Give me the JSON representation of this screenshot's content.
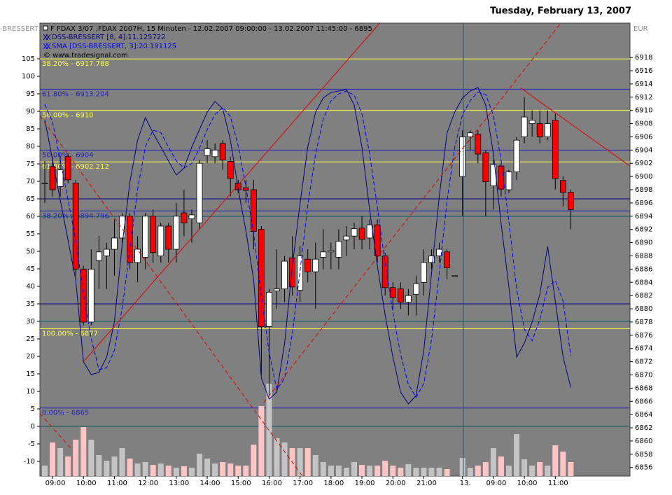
{
  "chart_data": {
    "type": "candlestick",
    "title": "Tuesday, February 13, 2007",
    "subtitle": "F FDAX 3/07 ,FDAX 2007H, 15 Minuten - 12.02.2007 09:00:00 - 13.02.2007 11:45:00 - 6895",
    "left_label": "-BRESSERT",
    "right_label": "EUR",
    "copyright": "© www.tradesignal.com",
    "categories": [
      null,
      "09:00",
      null,
      null,
      null,
      "10:00",
      null,
      null,
      null,
      "11:00",
      null,
      null,
      null,
      "12:00",
      null,
      null,
      null,
      "13:00",
      null,
      null,
      null,
      "14:00",
      null,
      null,
      null,
      "15:00",
      null,
      null,
      null,
      "16:00",
      null,
      null,
      null,
      "17:00",
      null,
      null,
      null,
      "18:00",
      null,
      null,
      null,
      "19:00",
      null,
      null,
      null,
      "20:00",
      null,
      null,
      null,
      "21:00",
      null,
      null,
      null,
      null,
      "13.",
      null,
      null,
      null,
      "09:00",
      null,
      null,
      null,
      "10:00",
      null,
      null,
      null,
      "11:00",
      null,
      null
    ],
    "ylim": [
      -14.2,
      115.2
    ],
    "yticks": [
      -10,
      -5,
      0,
      5,
      10,
      15,
      20,
      25,
      30,
      35,
      40,
      45,
      50,
      55,
      60,
      65,
      70,
      75,
      80,
      85,
      90,
      95,
      100,
      105
    ],
    "y2lim": [
      6854.7,
      6923.2
    ],
    "y2ticks": [
      6856,
      6858,
      6860,
      6862,
      6864,
      6866,
      6868,
      6870,
      6872,
      6874,
      6876,
      6878,
      6880,
      6882,
      6884,
      6886,
      6888,
      6890,
      6892,
      6894,
      6896,
      6898,
      6900,
      6902,
      6904,
      6906,
      6908,
      6910,
      6912,
      6914,
      6916,
      6918
    ],
    "candles": {
      "axis": "y2",
      "up_color": "#ffffff",
      "down_color": "#ff0000",
      "open": [
        6899,
        6901.5,
        6898.5,
        6903,
        6899,
        6886,
        6878,
        6887.3,
        6888,
        6889,
        6890.7,
        6894,
        6887,
        6887.8,
        6894,
        6888,
        6892.5,
        6889,
        6894.5,
        6893.6,
        6893,
        6903.2,
        6903,
        6905,
        6902.3,
        6899,
        6898.3,
        6898,
        6892,
        6877.3,
        6882.7,
        6883,
        6887.7,
        6882.8,
        6887.5,
        6885.6,
        6887.8,
        6888.6,
        6887.8,
        6890.4,
        6891,
        6892.2,
        6890.7,
        6892.7,
        6888,
        6883.2,
        6883,
        6881,
        6882.2,
        6884,
        6887,
        6888,
        6888.6,
        6885,
        6900,
        6906,
        6906.4,
        6903.6,
        6898.6,
        6901.6,
        6898,
        6900.7,
        6906,
        6908,
        6908,
        6906,
        6908.5,
        6899.4,
        6897.6
      ],
      "high": [
        6902.3,
        6903,
        6903,
        6903.5,
        6899.5,
        6886.5,
        6889,
        6891,
        6890,
        6893.5,
        6894.5,
        6894.5,
        6891,
        6894.5,
        6895,
        6893,
        6893,
        6896,
        6898,
        6895,
        6902.5,
        6905.5,
        6905,
        6905.5,
        6903,
        6899.5,
        6899.5,
        6899.5,
        6892.5,
        6883,
        6889,
        6888,
        6891,
        6889.5,
        6889,
        6890,
        6892,
        6890,
        6892,
        6892.5,
        6893,
        6894,
        6893.5,
        6893.5,
        6888.5,
        6884,
        6884,
        6883,
        6885,
        6889,
        6889,
        6890,
        6889,
        6885,
        6907,
        6907,
        6907,
        6904,
        6902.5,
        6902,
        6901,
        6906,
        6912,
        6910,
        6910,
        6910,
        6909.5,
        6900,
        6898
      ],
      "low": [
        6896,
        6897,
        6897,
        6899,
        6885,
        6877.5,
        6877.5,
        6883,
        6883,
        6885,
        6890,
        6886,
        6884,
        6886,
        6887,
        6887,
        6887,
        6887,
        6891,
        6890,
        6892,
        6902,
        6902,
        6901,
        6897,
        6897.5,
        6896,
        6889,
        6870,
        6867,
        6880,
        6881,
        6882,
        6881,
        6884,
        6880,
        6886,
        6886,
        6886,
        6888,
        6889,
        6889,
        6889,
        6887,
        6882,
        6880,
        6880,
        6879,
        6879,
        6882,
        6886,
        6887,
        6884.5,
        6885,
        6894,
        6904,
        6902,
        6894,
        6895,
        6897,
        6897.5,
        6899.5,
        6905,
        6906,
        6905,
        6905.5,
        6898,
        6895.5,
        6892
      ],
      "close": [
        6899,
        6898,
        6901,
        6899.5,
        6886,
        6878,
        6886,
        6888.6,
        6889,
        6890.7,
        6894,
        6887,
        6889,
        6894,
        6888.5,
        6892.5,
        6889,
        6894,
        6893,
        6894.2,
        6902,
        6904.2,
        6904,
        6902.5,
        6899.7,
        6898,
        6897.9,
        6891.7,
        6877.3,
        6882.5,
        6883,
        6887.2,
        6883.3,
        6888,
        6885.6,
        6887.5,
        6888.6,
        6888.8,
        6890.2,
        6891,
        6892.1,
        6890.5,
        6892.7,
        6888,
        6883.2,
        6881.7,
        6881,
        6882,
        6883.8,
        6887,
        6888,
        6889,
        6886.2,
        6885,
        6906,
        6906.6,
        6903.4,
        6899.2,
        6901.8,
        6898.1,
        6900.7,
        6905.5,
        6909,
        6908.5,
        6906,
        6908,
        6899.7,
        6897.6,
        6895
      ]
    },
    "volume": {
      "up_color": "#c4c4c4",
      "down_color": "#ffc4c4",
      "values": [
        -11.2,
        -4.6,
        -6.2,
        -8.6,
        -3.8,
        -0.2,
        -3.8,
        -8.2,
        -9.8,
        -8.6,
        -6.2,
        -9.2,
        -10.6,
        -10.2,
        -11,
        -10.6,
        -11.2,
        -11.8,
        -11.4,
        -11.8,
        -7.8,
        -9.2,
        -10.6,
        -10.2,
        -10.6,
        -11.2,
        -11.2,
        -5.2,
        5.8,
        12.2,
        -3.4,
        -4.6,
        -6.2,
        -6.2,
        -6.2,
        -8.2,
        -10.2,
        -11.2,
        -11.2,
        -11.8,
        -10.2,
        -11,
        -11.2,
        -11.2,
        -9.8,
        -11.2,
        -11.8,
        -10.8,
        -11.8,
        -11.8,
        -11.8,
        -11.8,
        -12.2,
        null,
        -9,
        -11.8,
        -11.2,
        -10.2,
        -6.2,
        -8.6,
        -11.2,
        -2.2,
        -9.4,
        -11.2,
        -10.2,
        -11.2,
        -5.4,
        -7.2,
        -10.2
      ]
    },
    "series": [
      {
        "name": "DSS-BRESSERT [8, 4]:11.125722",
        "color": "#000080",
        "dash": false,
        "values": [
          87.6,
          76.2,
          64.6,
          53.2,
          41.8,
          18.4,
          14.8,
          15.4,
          19.8,
          29.8,
          51.8,
          69.8,
          81.8,
          88.2,
          83.8,
          79.8,
          75.8,
          71.8,
          73.8,
          79.8,
          84.8,
          89.8,
          92.8,
          90.8,
          81.8,
          67.8,
          55.8,
          41.8,
          13.8,
          7.8,
          9.8,
          23.8,
          45.8,
          63.8,
          79.8,
          89.8,
          93.8,
          95.4,
          95.8,
          96.2,
          91.8,
          79.8,
          61.8,
          45.8,
          31.8,
          19.8,
          9.8,
          6.4,
          8.8,
          21.8,
          43.8,
          65.8,
          83.8,
          89.8,
          93.8,
          95.8,
          96.8,
          91.8,
          77.8,
          57.8,
          39.8,
          19.8,
          23.8,
          29.8,
          37.8,
          51.4,
          35.8,
          19.8,
          11.1
        ]
      },
      {
        "name": "SMA [DSS-BRESSERT, 3]:20.191125",
        "color": "#0000ff",
        "dash": true,
        "values": [
          92,
          87,
          76.1,
          64.7,
          53.2,
          37.8,
          25,
          16.2,
          16.7,
          21.7,
          33.8,
          50.5,
          67.8,
          79.9,
          84.6,
          83.9,
          79.8,
          75.8,
          73.8,
          75.1,
          79.5,
          84.8,
          89.1,
          91.1,
          88.5,
          80.1,
          68.5,
          55.1,
          37.1,
          21.1,
          10.5,
          13.8,
          26.5,
          44.5,
          63.1,
          77.8,
          87.8,
          93,
          95,
          95.8,
          94.6,
          89.3,
          77.8,
          62.5,
          46.5,
          32.5,
          20.5,
          12,
          8.3,
          12.3,
          24.8,
          43.8,
          64.5,
          79.8,
          89.1,
          93.1,
          95.5,
          94.8,
          88.8,
          75.8,
          58.5,
          39.1,
          27.8,
          24.5,
          30.5,
          39.7,
          41.7,
          35.7,
          20.2
        ]
      }
    ],
    "fib_levels": [
      {
        "value": 6917.788,
        "label": "38.20% - 6917.788",
        "color": "#ffff40"
      },
      {
        "value": 6913.204,
        "label": "61.80% - 6913.204",
        "color": "#2020c8"
      },
      {
        "value": 6910,
        "label": "50.00% - 6910",
        "color": "#ffff40"
      },
      {
        "value": 6904,
        "label": "50.00% - 6904",
        "color": "#2020c8"
      },
      {
        "value": 6902.212,
        "label": "61.80% - 6902.212",
        "color": "#ffff40"
      },
      {
        "value": 6894.796,
        "label": "38.20% - 6894.796",
        "color": "#2020c8"
      },
      {
        "value": 6877,
        "label": "100.00% - 6877",
        "color": "#ffff40"
      },
      {
        "value": 6865,
        "label": "0.00% - 6865",
        "color": "#2020c8"
      }
    ],
    "dss_levels": [
      {
        "value": 65,
        "color": "#000080"
      },
      {
        "value": 35,
        "color": "#000080"
      },
      {
        "value": 60,
        "color": "#006060"
      },
      {
        "value": 30,
        "color": "#006060"
      },
      {
        "value": 0,
        "color": "#006060"
      }
    ],
    "trendlines": [
      {
        "x": [
          5,
          43.3
        ],
        "y": [
          6872,
          6923.2
        ],
        "color": "#e00000",
        "dash": false
      },
      {
        "x": [
          61.5,
          76
        ],
        "y": [
          6913.4,
          6901.3
        ],
        "color": "#e00000",
        "dash": false
      },
      {
        "x": [
          -0.64,
          33.3
        ],
        "y": [
          6909.2,
          6854.7
        ],
        "color": "#e00000",
        "dash": true
      },
      {
        "x": [
          28.3,
          66.9
        ],
        "y": [
          6865.8,
          6923.5
        ],
        "color": "#e00000",
        "dash": true
      },
      {
        "x": [
          -0.64,
          3.3
        ],
        "y": [
          6864.2,
          6859
        ],
        "color": "#e00000",
        "dash": true
      }
    ]
  }
}
